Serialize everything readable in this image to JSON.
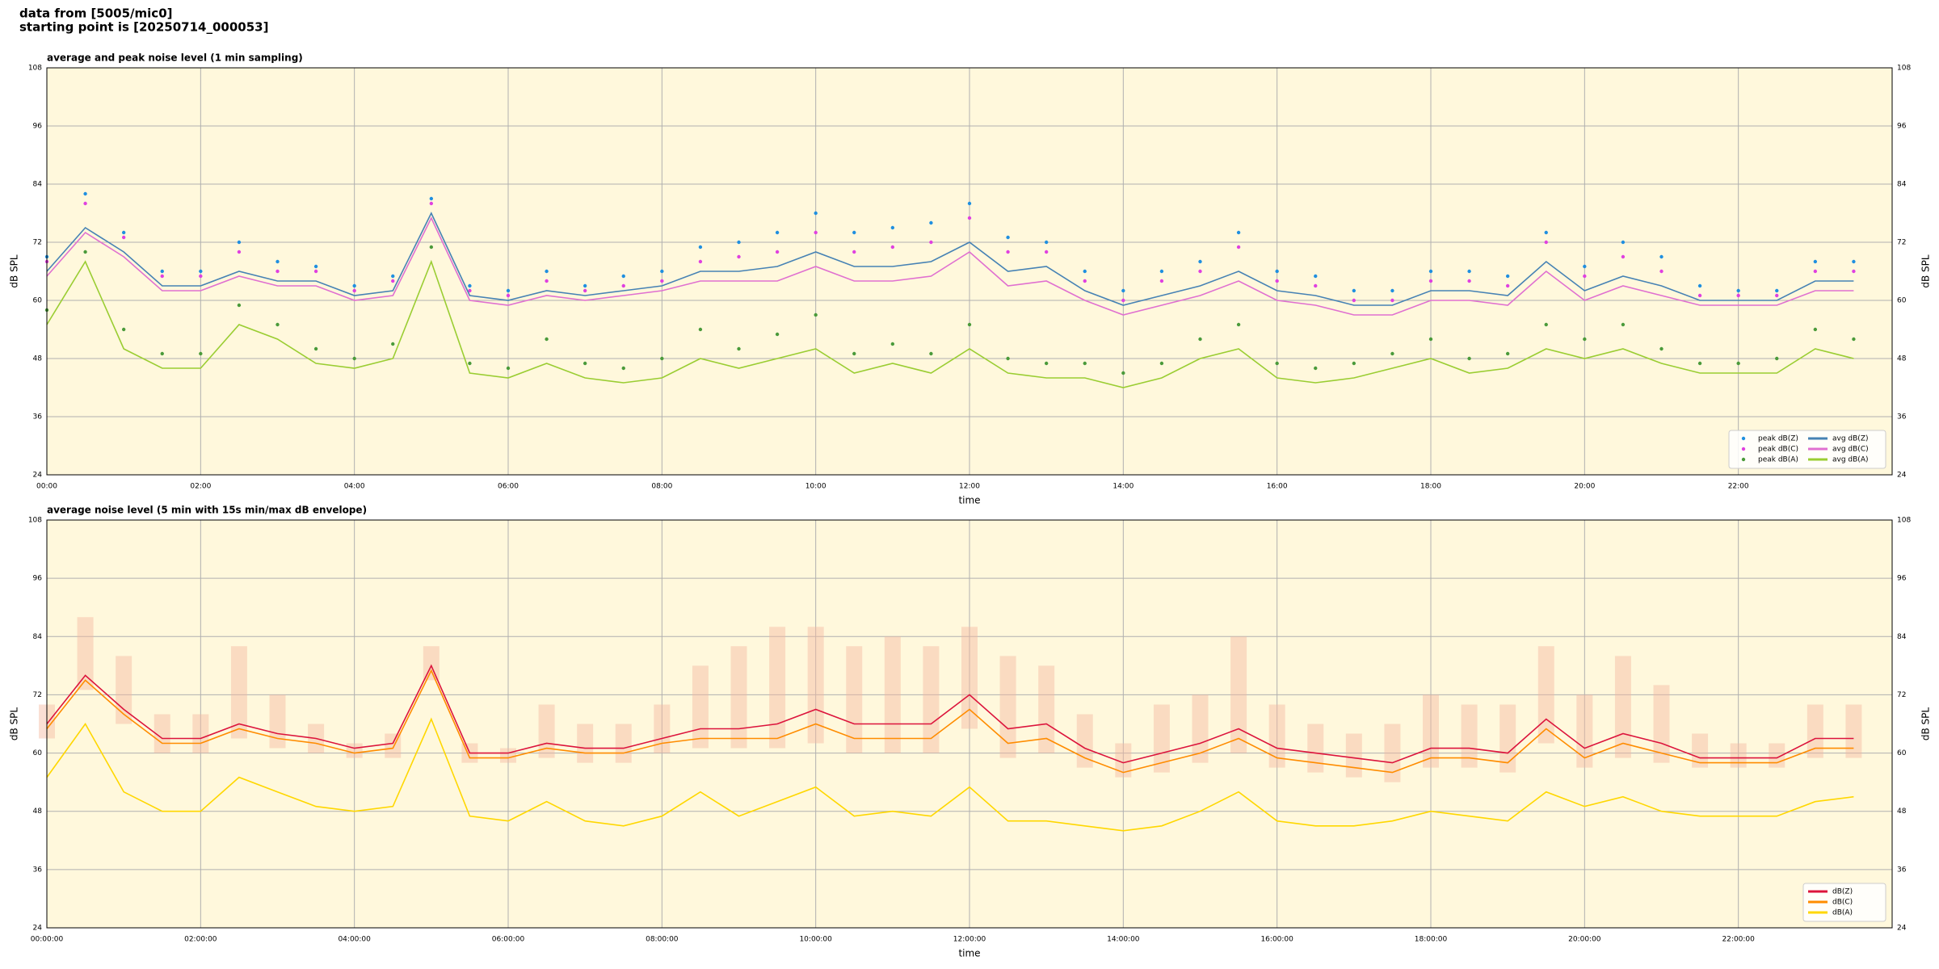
{
  "header": {
    "line1": "data from [5005/mic0]",
    "line2": "starting point is [20250714_000053]"
  },
  "chart_data": [
    {
      "type": "line",
      "title": "average and peak noise level (1 min sampling)",
      "x_label": "time",
      "y_label": "dB SPL",
      "legend": "lower right",
      "grid": true,
      "x": [
        0,
        0.5,
        1,
        1.5,
        2,
        2.5,
        3,
        3.5,
        4,
        4.5,
        5,
        5.5,
        6,
        6.5,
        7,
        7.5,
        8,
        8.5,
        9,
        9.5,
        10,
        10.5,
        11,
        11.5,
        12,
        12.5,
        13,
        13.5,
        14,
        14.5,
        15,
        15.5,
        16,
        16.5,
        17,
        17.5,
        18,
        18.5,
        19,
        19.5,
        20,
        20.5,
        21,
        21.5,
        22,
        22.5,
        23,
        23.5
      ],
      "xlim": [
        0,
        24
      ],
      "ylim": [
        24,
        108
      ],
      "yticks": [
        24,
        36,
        48,
        60,
        72,
        84,
        96,
        108
      ],
      "xticks": [
        {
          "value": 0,
          "label": "00:00"
        },
        {
          "value": 2,
          "label": "02:00"
        },
        {
          "value": 4,
          "label": "04:00"
        },
        {
          "value": 6,
          "label": "06:00"
        },
        {
          "value": 8,
          "label": "08:00"
        },
        {
          "value": 10,
          "label": "10:00"
        },
        {
          "value": 12,
          "label": "12:00"
        },
        {
          "value": 14,
          "label": "14:00"
        },
        {
          "value": 16,
          "label": "16:00"
        },
        {
          "value": 18,
          "label": "18:00"
        },
        {
          "value": 20,
          "label": "20:00"
        },
        {
          "value": 22,
          "label": "22:00"
        }
      ],
      "series": [
        {
          "name": "peak dB(Z)",
          "color": "#1f8fe0",
          "style": "dots",
          "values": [
            69,
            82,
            74,
            66,
            66,
            72,
            68,
            67,
            63,
            65,
            81,
            63,
            62,
            66,
            63,
            65,
            66,
            71,
            72,
            74,
            78,
            74,
            75,
            76,
            80,
            73,
            72,
            66,
            62,
            66,
            68,
            74,
            66,
            65,
            62,
            62,
            66,
            66,
            65,
            74,
            67,
            72,
            69,
            63,
            62,
            62,
            68,
            68
          ]
        },
        {
          "name": "peak dB(C)",
          "color": "#e040e0",
          "style": "dots",
          "values": [
            68,
            80,
            73,
            65,
            65,
            70,
            66,
            66,
            62,
            64,
            80,
            62,
            61,
            64,
            62,
            63,
            64,
            68,
            69,
            70,
            74,
            70,
            71,
            72,
            77,
            70,
            70,
            64,
            60,
            64,
            66,
            71,
            64,
            63,
            60,
            60,
            64,
            64,
            63,
            72,
            65,
            69,
            66,
            61,
            61,
            61,
            66,
            66
          ]
        },
        {
          "name": "peak dB(A)",
          "color": "#4a9a3a",
          "style": "dots",
          "values": [
            58,
            70,
            54,
            49,
            49,
            59,
            55,
            50,
            48,
            51,
            71,
            47,
            46,
            52,
            47,
            46,
            48,
            54,
            50,
            53,
            57,
            49,
            51,
            49,
            55,
            48,
            47,
            47,
            45,
            47,
            52,
            55,
            47,
            46,
            47,
            49,
            52,
            48,
            49,
            55,
            52,
            55,
            50,
            47,
            47,
            48,
            54,
            52
          ]
        },
        {
          "name": "avg dB(Z)",
          "color": "#4682b4",
          "style": "line",
          "values": [
            66,
            75,
            70,
            63,
            63,
            66,
            64,
            64,
            61,
            62,
            78,
            61,
            60,
            62,
            61,
            62,
            63,
            66,
            66,
            67,
            70,
            67,
            67,
            68,
            72,
            66,
            67,
            62,
            59,
            61,
            63,
            66,
            62,
            61,
            59,
            59,
            62,
            62,
            61,
            68,
            62,
            65,
            63,
            60,
            60,
            60,
            64,
            64
          ]
        },
        {
          "name": "avg dB(C)",
          "color": "#e070d0",
          "style": "line",
          "values": [
            65,
            74,
            69,
            62,
            62,
            65,
            63,
            63,
            60,
            61,
            77,
            60,
            59,
            61,
            60,
            61,
            62,
            64,
            64,
            64,
            67,
            64,
            64,
            65,
            70,
            63,
            64,
            60,
            57,
            59,
            61,
            64,
            60,
            59,
            57,
            57,
            60,
            60,
            59,
            66,
            60,
            63,
            61,
            59,
            59,
            59,
            62,
            62
          ]
        },
        {
          "name": "avg dB(A)",
          "color": "#9acd32",
          "style": "line",
          "values": [
            55,
            68,
            50,
            46,
            46,
            55,
            52,
            47,
            46,
            48,
            68,
            45,
            44,
            47,
            44,
            43,
            44,
            48,
            46,
            48,
            50,
            45,
            47,
            45,
            50,
            45,
            44,
            44,
            42,
            44,
            48,
            50,
            44,
            43,
            44,
            46,
            48,
            45,
            46,
            50,
            48,
            50,
            47,
            45,
            45,
            45,
            50,
            48
          ]
        }
      ]
    },
    {
      "type": "line",
      "title": "average noise level (5 min with 15s min/max dB envelope)",
      "x_label": "time",
      "y_label": "dB SPL",
      "legend": "lower right",
      "grid": true,
      "x": [
        0,
        0.5,
        1,
        1.5,
        2,
        2.5,
        3,
        3.5,
        4,
        4.5,
        5,
        5.5,
        6,
        6.5,
        7,
        7.5,
        8,
        8.5,
        9,
        9.5,
        10,
        10.5,
        11,
        11.5,
        12,
        12.5,
        13,
        13.5,
        14,
        14.5,
        15,
        15.5,
        16,
        16.5,
        17,
        17.5,
        18,
        18.5,
        19,
        19.5,
        20,
        20.5,
        21,
        21.5,
        22,
        22.5,
        23,
        23.5
      ],
      "xlim": [
        0,
        24
      ],
      "ylim": [
        24,
        108
      ],
      "yticks": [
        24,
        36,
        48,
        60,
        72,
        84,
        96,
        108
      ],
      "xticks": [
        {
          "value": 0,
          "label": "00:00:00"
        },
        {
          "value": 2,
          "label": "02:00:00"
        },
        {
          "value": 4,
          "label": "04:00:00"
        },
        {
          "value": 6,
          "label": "06:00:00"
        },
        {
          "value": 8,
          "label": "08:00:00"
        },
        {
          "value": 10,
          "label": "10:00:00"
        },
        {
          "value": 12,
          "label": "12:00:00"
        },
        {
          "value": 14,
          "label": "14:00:00"
        },
        {
          "value": 16,
          "label": "16:00:00"
        },
        {
          "value": 18,
          "label": "18:00:00"
        },
        {
          "value": 20,
          "label": "20:00:00"
        },
        {
          "value": 22,
          "label": "22:00:00"
        }
      ],
      "envelope": {
        "color": "#f4b8a0",
        "low": [
          63,
          73,
          66,
          60,
          60,
          63,
          61,
          60,
          59,
          59,
          75,
          58,
          58,
          59,
          58,
          58,
          60,
          61,
          61,
          61,
          62,
          60,
          60,
          60,
          65,
          59,
          60,
          57,
          55,
          56,
          58,
          60,
          57,
          56,
          55,
          54,
          57,
          57,
          56,
          62,
          57,
          59,
          58,
          57,
          57,
          57,
          59,
          59
        ],
        "high": [
          70,
          88,
          80,
          68,
          68,
          82,
          72,
          66,
          62,
          64,
          82,
          62,
          61,
          70,
          66,
          66,
          70,
          78,
          82,
          86,
          86,
          82,
          84,
          82,
          86,
          80,
          78,
          68,
          62,
          70,
          72,
          84,
          70,
          66,
          64,
          66,
          72,
          70,
          70,
          82,
          72,
          80,
          74,
          64,
          62,
          62,
          70,
          70
        ]
      },
      "series": [
        {
          "name": "dB(Z)",
          "color": "#dc143c",
          "style": "line",
          "values": [
            66,
            76,
            69,
            63,
            63,
            66,
            64,
            63,
            61,
            62,
            78,
            60,
            60,
            62,
            61,
            61,
            63,
            65,
            65,
            66,
            69,
            66,
            66,
            66,
            72,
            65,
            66,
            61,
            58,
            60,
            62,
            65,
            61,
            60,
            59,
            58,
            61,
            61,
            60,
            67,
            61,
            64,
            62,
            59,
            59,
            59,
            63,
            63
          ]
        },
        {
          "name": "dB(C)",
          "color": "#ff8c00",
          "style": "line",
          "values": [
            65,
            75,
            68,
            62,
            62,
            65,
            63,
            62,
            60,
            61,
            77,
            59,
            59,
            61,
            60,
            60,
            62,
            63,
            63,
            63,
            66,
            63,
            63,
            63,
            69,
            62,
            63,
            59,
            56,
            58,
            60,
            63,
            59,
            58,
            57,
            56,
            59,
            59,
            58,
            65,
            59,
            62,
            60,
            58,
            58,
            58,
            61,
            61
          ]
        },
        {
          "name": "dB(A)",
          "color": "#ffd700",
          "style": "line",
          "values": [
            55,
            66,
            52,
            48,
            48,
            55,
            52,
            49,
            48,
            49,
            67,
            47,
            46,
            50,
            46,
            45,
            47,
            52,
            47,
            50,
            53,
            47,
            48,
            47,
            53,
            46,
            46,
            45,
            44,
            45,
            48,
            52,
            46,
            45,
            45,
            46,
            48,
            47,
            46,
            52,
            49,
            51,
            48,
            47,
            47,
            47,
            50,
            51
          ]
        }
      ]
    }
  ]
}
